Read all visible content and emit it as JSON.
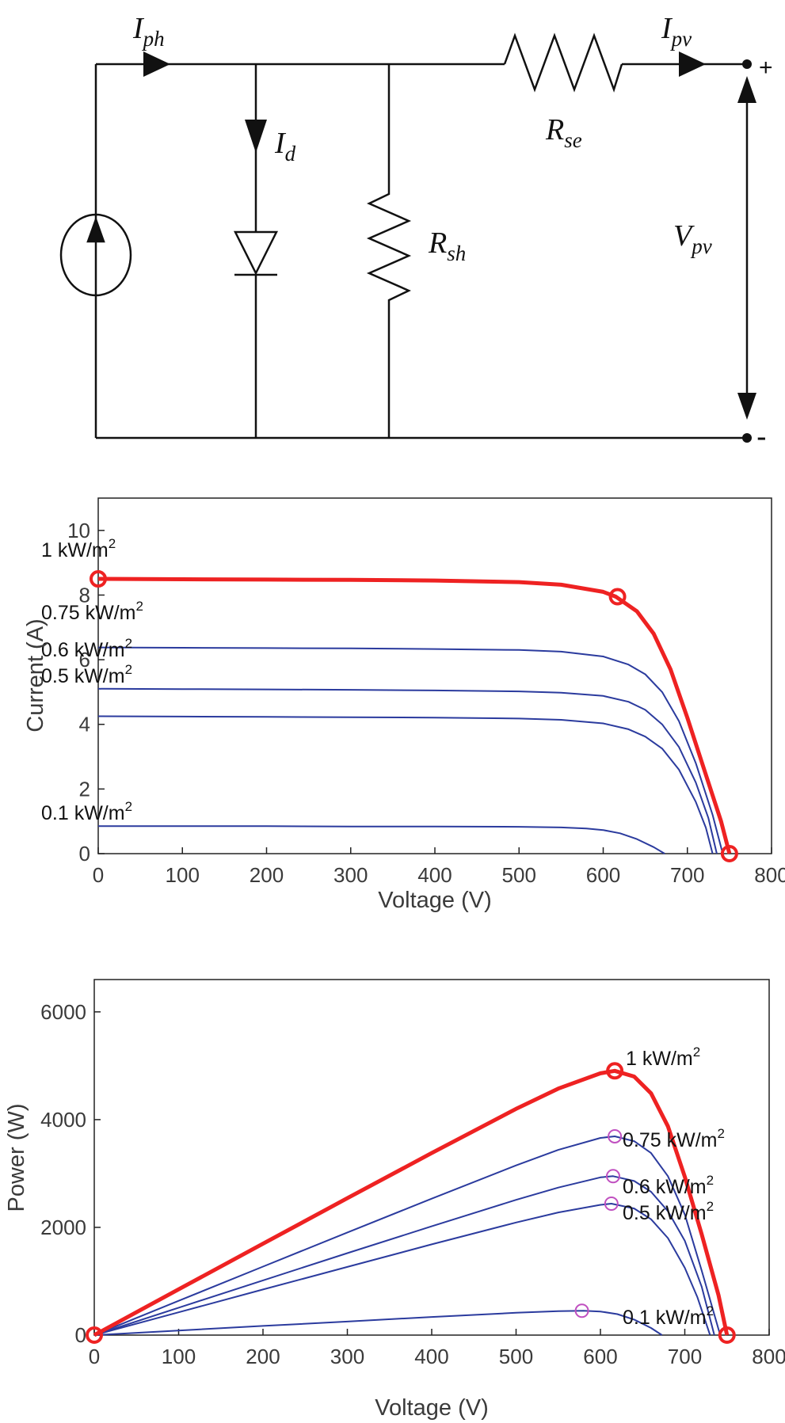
{
  "circuit": {
    "labels": {
      "i_ph": {
        "base": "I",
        "sub": "ph"
      },
      "i_d": {
        "base": "I",
        "sub": "d"
      },
      "r_sh": {
        "base": "R",
        "sub": "sh"
      },
      "r_se": {
        "base": "R",
        "sub": "se"
      },
      "i_pv": {
        "base": "I",
        "sub": "pv"
      },
      "v_pv": {
        "base": "V",
        "sub": "pv"
      },
      "plus": "+",
      "minus": "-"
    }
  },
  "colors": {
    "highlight": "#ee2222",
    "curve": "#2b3b9e",
    "mpp_marker": "#c050c0",
    "line": "#111111",
    "axis": "#222222"
  },
  "chart_data": [
    {
      "type": "line",
      "title": "",
      "xlabel": "Voltage (V)",
      "ylabel": "Current (A)",
      "xlim": [
        0,
        800
      ],
      "ylim": [
        0,
        11
      ],
      "xticks": [
        0,
        100,
        200,
        300,
        400,
        500,
        600,
        700,
        800
      ],
      "yticks": [
        0,
        2,
        4,
        6,
        8,
        10
      ],
      "series": [
        {
          "name": "1 kW/m2",
          "label_base": "1 kW/m",
          "label_sup": "2",
          "highlight": true,
          "x": [
            0,
            100,
            200,
            300,
            400,
            500,
            550,
            600,
            615,
            640,
            660,
            680,
            700,
            720,
            740,
            750
          ],
          "y": [
            8.5,
            8.49,
            8.48,
            8.47,
            8.45,
            8.4,
            8.32,
            8.1,
            7.95,
            7.5,
            6.8,
            5.7,
            4.2,
            2.6,
            1.0,
            0
          ]
        },
        {
          "name": "0.75 kW/m2",
          "label_base": "0.75 kW/m",
          "label_sup": "2",
          "x": [
            0,
            100,
            200,
            300,
            400,
            500,
            550,
            600,
            630,
            650,
            670,
            690,
            710,
            730,
            742
          ],
          "y": [
            6.38,
            6.37,
            6.36,
            6.35,
            6.33,
            6.3,
            6.25,
            6.1,
            5.85,
            5.55,
            5.0,
            4.1,
            2.8,
            1.2,
            0
          ]
        },
        {
          "name": "0.6 kW/m2",
          "label_base": "0.6 kW/m",
          "label_sup": "2",
          "x": [
            0,
            100,
            200,
            300,
            400,
            500,
            550,
            600,
            630,
            650,
            670,
            690,
            710,
            725,
            735
          ],
          "y": [
            5.1,
            5.09,
            5.08,
            5.07,
            5.05,
            5.02,
            4.98,
            4.88,
            4.7,
            4.45,
            4.0,
            3.3,
            2.2,
            1.1,
            0
          ]
        },
        {
          "name": "0.5 kW/m2",
          "label_base": "0.5 kW/m",
          "label_sup": "2",
          "x": [
            0,
            100,
            200,
            300,
            400,
            500,
            550,
            600,
            630,
            650,
            670,
            690,
            710,
            722,
            730
          ],
          "y": [
            4.25,
            4.24,
            4.23,
            4.22,
            4.21,
            4.18,
            4.14,
            4.03,
            3.85,
            3.62,
            3.25,
            2.6,
            1.6,
            0.8,
            0
          ]
        },
        {
          "name": "0.1 kW/m2",
          "label_base": "0.1 kW/m",
          "label_sup": "2",
          "x": [
            0,
            100,
            200,
            300,
            400,
            500,
            550,
            580,
            600,
            620,
            640,
            660,
            673
          ],
          "y": [
            0.85,
            0.85,
            0.85,
            0.84,
            0.84,
            0.83,
            0.81,
            0.78,
            0.73,
            0.63,
            0.45,
            0.2,
            0
          ]
        }
      ],
      "markers": [
        {
          "x": 0,
          "y": 8.5,
          "style": "highlight"
        },
        {
          "x": 617,
          "y": 7.95,
          "style": "highlight"
        },
        {
          "x": 750,
          "y": 0,
          "style": "highlight"
        }
      ]
    },
    {
      "type": "line",
      "title": "",
      "xlabel": "Voltage (V)",
      "ylabel": "Power (W)",
      "xlim": [
        0,
        800
      ],
      "ylim": [
        0,
        6600
      ],
      "xticks": [
        0,
        100,
        200,
        300,
        400,
        500,
        600,
        700,
        800
      ],
      "yticks": [
        0,
        2000,
        4000,
        6000
      ],
      "series": [
        {
          "name": "1 kW/m2",
          "label_base": "1 kW/m",
          "label_sup": "2",
          "highlight": true,
          "x": [
            0,
            100,
            200,
            300,
            400,
            500,
            550,
            600,
            617,
            640,
            660,
            680,
            700,
            720,
            740,
            750
          ],
          "y": [
            0,
            849,
            1696,
            2541,
            3380,
            4200,
            4576,
            4860,
            4905,
            4800,
            4488,
            3876,
            2940,
            1872,
            740,
            0
          ]
        },
        {
          "name": "0.75 kW/m2",
          "label_base": "0.75 kW/m",
          "label_sup": "2",
          "x": [
            0,
            100,
            200,
            300,
            400,
            500,
            550,
            600,
            617,
            640,
            660,
            680,
            700,
            720,
            742
          ],
          "y": [
            0,
            637,
            1272,
            1905,
            2532,
            3150,
            3438,
            3660,
            3690,
            3600,
            3380,
            2950,
            2240,
            1200,
            0
          ]
        },
        {
          "name": "0.6 kW/m2",
          "label_base": "0.6 kW/m",
          "label_sup": "2",
          "x": [
            0,
            100,
            200,
            300,
            400,
            500,
            550,
            600,
            615,
            640,
            660,
            680,
            700,
            720,
            735
          ],
          "y": [
            0,
            509,
            1016,
            1521,
            2020,
            2510,
            2739,
            2928,
            2950,
            2860,
            2660,
            2300,
            1750,
            900,
            0
          ]
        },
        {
          "name": "0.5 kW/m2",
          "label_base": "0.5 kW/m",
          "label_sup": "2",
          "x": [
            0,
            100,
            200,
            300,
            400,
            500,
            550,
            600,
            613,
            640,
            660,
            680,
            700,
            715,
            730
          ],
          "y": [
            0,
            424,
            846,
            1266,
            1684,
            2090,
            2277,
            2418,
            2440,
            2350,
            2150,
            1800,
            1250,
            700,
            0
          ]
        },
        {
          "name": "0.1 kW/m2",
          "label_base": "0.1 kW/m",
          "label_sup": "2",
          "x": [
            0,
            100,
            200,
            300,
            400,
            500,
            550,
            580,
            600,
            620,
            640,
            660,
            673
          ],
          "y": [
            0,
            85,
            170,
            252,
            336,
            415,
            446,
            452,
            438,
            390,
            288,
            132,
            0
          ]
        }
      ],
      "markers": [
        {
          "x": 0,
          "y": 0,
          "style": "highlight"
        },
        {
          "x": 617,
          "y": 4905,
          "style": "highlight"
        },
        {
          "x": 750,
          "y": 0,
          "style": "highlight"
        },
        {
          "x": 617,
          "y": 3690,
          "style": "mpp"
        },
        {
          "x": 615,
          "y": 2950,
          "style": "mpp"
        },
        {
          "x": 613,
          "y": 2440,
          "style": "mpp"
        },
        {
          "x": 578,
          "y": 452,
          "style": "mpp"
        }
      ]
    }
  ]
}
